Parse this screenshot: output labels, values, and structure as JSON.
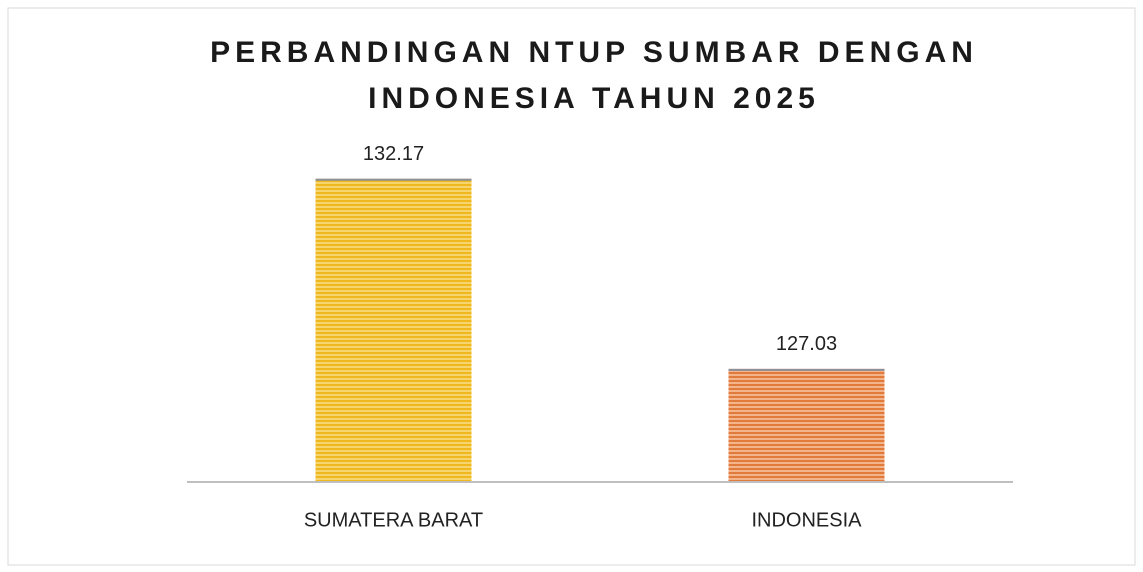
{
  "chart_data": {
    "type": "bar",
    "title": "PERBANDINGAN NTUP SUMBAR DENGAN INDONESIA TAHUN 2025",
    "categories": [
      "SUMATERA BARAT",
      "INDONESIA"
    ],
    "values": [
      132.17,
      127.03
    ],
    "colors": [
      "#f5c53f",
      "#e8905a"
    ],
    "ylim": [
      124,
      134
    ]
  }
}
